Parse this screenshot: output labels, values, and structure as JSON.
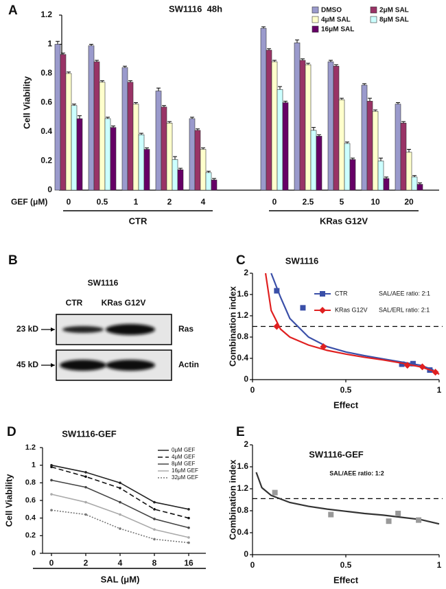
{
  "chart_data": [
    {
      "type": "bar",
      "panel": "A",
      "title": "SW1116  48h",
      "y_label": "Cell Viability",
      "x_label": "GEF (μM)",
      "ylim": [
        0,
        1.2
      ],
      "yticks": [
        0,
        0.2,
        0.4,
        0.6,
        0.8,
        1,
        1.2
      ],
      "groups": [
        {
          "name": "CTR",
          "categories": [
            "0",
            "0.5",
            "1",
            "2",
            "4"
          ]
        },
        {
          "name": "KRas G12V",
          "categories": [
            "0",
            "2.5",
            "5",
            "10",
            "20"
          ]
        }
      ],
      "series": [
        {
          "name": "DMSO",
          "color": "#9a9acc",
          "values": [
            1.0,
            0.99,
            0.84,
            0.68,
            0.49,
            1.11,
            1.01,
            0.88,
            0.72,
            0.59
          ],
          "errors": [
            0.02,
            0.01,
            0.01,
            0.02,
            0.01,
            0.01,
            0.02,
            0.01,
            0.01,
            0.01
          ]
        },
        {
          "name": "2μM SAL",
          "color": "#993366",
          "values": [
            0.93,
            0.88,
            0.74,
            0.57,
            0.41,
            0.96,
            0.89,
            0.85,
            0.61,
            0.46
          ],
          "errors": [
            0.01,
            0.01,
            0.01,
            0.01,
            0.01,
            0.01,
            0.01,
            0.01,
            0.02,
            0.01
          ]
        },
        {
          "name": "4μM SAL",
          "color": "#ffffcc",
          "values": [
            0.8,
            0.74,
            0.59,
            0.46,
            0.28,
            0.88,
            0.86,
            0.62,
            0.54,
            0.26
          ],
          "errors": [
            0.01,
            0.01,
            0.01,
            0.01,
            0.01,
            0.01,
            0.01,
            0.01,
            0.01,
            0.02
          ]
        },
        {
          "name": "8μM SAL",
          "color": "#ccffff",
          "values": [
            0.58,
            0.49,
            0.38,
            0.21,
            0.12,
            0.69,
            0.41,
            0.32,
            0.2,
            0.09
          ],
          "errors": [
            0.01,
            0.01,
            0.01,
            0.02,
            0.01,
            0.02,
            0.02,
            0.01,
            0.02,
            0.01
          ]
        },
        {
          "name": "16μM SAL",
          "color": "#660066",
          "values": [
            0.49,
            0.43,
            0.28,
            0.14,
            0.07,
            0.6,
            0.37,
            0.21,
            0.08,
            0.04
          ],
          "errors": [
            0.02,
            0.01,
            0.01,
            0.01,
            0.01,
            0.01,
            0.01,
            0.01,
            0.01,
            0.01
          ]
        }
      ]
    },
    {
      "type": "scatter",
      "panel": "C",
      "title": "SW1116",
      "x_label": "Effect",
      "y_label": "Combination index",
      "xlim": [
        0,
        1
      ],
      "xticks": [
        0,
        0.5,
        1
      ],
      "ylim": [
        0,
        2
      ],
      "yticks": [
        0,
        0.4,
        0.8,
        1.2,
        1.6,
        2
      ],
      "reference_line": 1,
      "series": [
        {
          "name": "CTR",
          "note": "SAL/AEE ratio: 2:1",
          "color": "#3a4fa8",
          "marker": "square",
          "x": [
            0.13,
            0.27,
            0.8,
            0.86,
            0.95
          ],
          "values": [
            1.67,
            1.35,
            0.29,
            0.3,
            0.18
          ],
          "fit": {
            "x": [
              0.1,
              0.15,
              0.2,
              0.3,
              0.4,
              0.5,
              0.6,
              0.7,
              0.8,
              0.9,
              0.97
            ],
            "y": [
              2.0,
              1.55,
              1.15,
              0.8,
              0.62,
              0.52,
              0.45,
              0.39,
              0.33,
              0.27,
              0.18
            ]
          }
        },
        {
          "name": "KRas G12V",
          "note": "SAL/ERL ratio: 2:1",
          "color": "#e02020",
          "marker": "diamond",
          "x": [
            0.13,
            0.38,
            0.83,
            0.91,
            0.98
          ],
          "values": [
            1.0,
            0.62,
            0.27,
            0.24,
            0.14
          ],
          "fit": {
            "x": [
              0.07,
              0.1,
              0.15,
              0.2,
              0.3,
              0.4,
              0.5,
              0.6,
              0.7,
              0.8,
              0.9,
              0.98,
              1.0
            ],
            "y": [
              2.0,
              1.3,
              0.95,
              0.8,
              0.65,
              0.55,
              0.48,
              0.42,
              0.37,
              0.31,
              0.24,
              0.15,
              0.1
            ]
          }
        }
      ]
    },
    {
      "type": "line",
      "panel": "D",
      "title": "SW1116-GEF",
      "x_label": "SAL (μM)",
      "y_label": "Cell Viability",
      "categories": [
        "0",
        "2",
        "4",
        "8",
        "16"
      ],
      "ylim": [
        0,
        1.2
      ],
      "yticks": [
        0,
        0.2,
        0.4,
        0.6,
        0.8,
        1,
        1.2
      ],
      "series": [
        {
          "name": "0μM GEF",
          "color": "#222222",
          "dash": "none",
          "values": [
            1.0,
            0.92,
            0.8,
            0.58,
            0.5
          ]
        },
        {
          "name": "4μM GEF",
          "color": "#111111",
          "dash": "7,4",
          "values": [
            0.98,
            0.87,
            0.74,
            0.5,
            0.4
          ]
        },
        {
          "name": "8μM GEF",
          "color": "#444444",
          "dash": "none",
          "values": [
            0.83,
            0.75,
            0.58,
            0.39,
            0.29
          ]
        },
        {
          "name": "16μM GEF",
          "color": "#aaaaaa",
          "dash": "none",
          "values": [
            0.67,
            0.58,
            0.44,
            0.27,
            0.18
          ]
        },
        {
          "name": "32μM GEF",
          "color": "#777777",
          "dash": "2,2",
          "values": [
            0.49,
            0.44,
            0.28,
            0.16,
            0.12
          ]
        }
      ]
    },
    {
      "type": "scatter",
      "panel": "E",
      "title": "SW1116-GEF",
      "annotation": "SAL/AEE ratio: 1:2",
      "x_label": "Effect",
      "y_label": "Combination index",
      "xlim": [
        0,
        1
      ],
      "xticks": [
        0,
        0.5,
        1
      ],
      "ylim": [
        0,
        2
      ],
      "yticks": [
        0,
        0.4,
        0.8,
        1.2,
        1.6,
        2
      ],
      "reference_line": 1.02,
      "series": [
        {
          "color": "#999999",
          "marker": "square",
          "line_color": "#333333",
          "x": [
            0.12,
            0.42,
            0.73,
            0.78,
            0.89
          ],
          "values": [
            1.13,
            0.73,
            0.61,
            0.75,
            0.63
          ],
          "fit": {
            "x": [
              0.02,
              0.05,
              0.1,
              0.2,
              0.3,
              0.4,
              0.5,
              0.6,
              0.7,
              0.8,
              0.9,
              1.0
            ],
            "y": [
              1.5,
              1.22,
              1.08,
              0.95,
              0.88,
              0.83,
              0.79,
              0.75,
              0.72,
              0.68,
              0.64,
              0.56
            ]
          }
        }
      ]
    }
  ],
  "blot": {
    "panel": "B",
    "title": "SW1116",
    "lanes": [
      "CTR",
      "KRas G12V"
    ],
    "bands": [
      {
        "size": "23 kD",
        "label": "Ras"
      },
      {
        "size": "45 kD",
        "label": "Actin"
      }
    ]
  }
}
